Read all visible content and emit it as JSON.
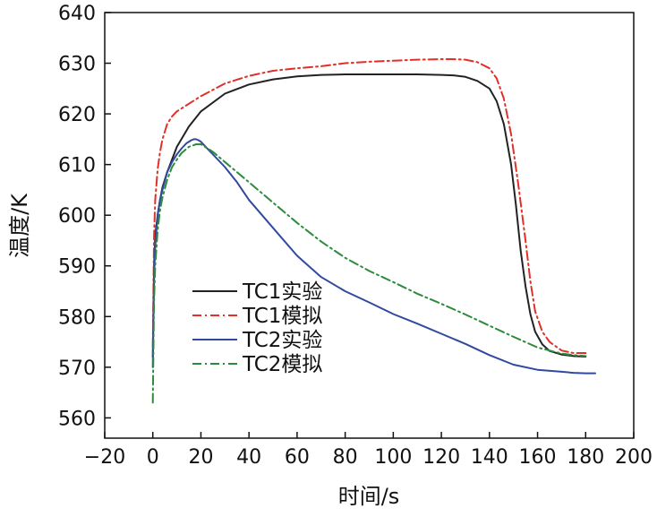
{
  "chart_data": {
    "type": "line",
    "title": "",
    "xlabel": "时间/s",
    "ylabel": "温度/K",
    "xlim": [
      -20,
      200
    ],
    "ylim": [
      556,
      640
    ],
    "xticks": [
      -20,
      0,
      20,
      40,
      60,
      80,
      100,
      120,
      140,
      160,
      180,
      200
    ],
    "xtick_labels": [
      "−20",
      "0",
      "20",
      "40",
      "60",
      "80",
      "100",
      "120",
      "140",
      "160",
      "180",
      "200"
    ],
    "yticks": [
      560,
      570,
      580,
      590,
      600,
      610,
      620,
      630,
      640
    ],
    "ytick_labels": [
      "560",
      "570",
      "580",
      "590",
      "600",
      "610",
      "620",
      "630",
      "640"
    ],
    "grid": false,
    "legend_position": "lower-left",
    "series": [
      {
        "name": "TC1实验",
        "color": "#222222",
        "style": "solid",
        "x": [
          0,
          0.5,
          1,
          2,
          3,
          4,
          6,
          8,
          10,
          15,
          20,
          30,
          40,
          50,
          60,
          70,
          80,
          90,
          100,
          110,
          120,
          125,
          130,
          135,
          140,
          143,
          146,
          149,
          151,
          153,
          155,
          157,
          159,
          162,
          165,
          170,
          175,
          180
        ],
        "y": [
          572,
          590,
          596,
          600,
          603,
          605.5,
          608.5,
          611,
          613.5,
          617.5,
          620.5,
          624,
          625.8,
          626.8,
          627.4,
          627.7,
          627.8,
          627.8,
          627.8,
          627.8,
          627.7,
          627.6,
          627.3,
          626.5,
          625,
          622.5,
          618,
          610,
          602,
          593,
          586,
          580.5,
          577,
          574.5,
          573.2,
          572.5,
          572.2,
          572.1
        ]
      },
      {
        "name": "TC1模拟",
        "color": "#e0302a",
        "style": "dashdot",
        "x": [
          0,
          0.5,
          1,
          2,
          3,
          4,
          6,
          8,
          10,
          15,
          20,
          30,
          40,
          50,
          60,
          70,
          80,
          90,
          100,
          110,
          120,
          125,
          130,
          135,
          140,
          143,
          146,
          149,
          152,
          155,
          157,
          159,
          162,
          165,
          170,
          175,
          180
        ],
        "y": [
          574,
          596,
          603,
          609,
          612.5,
          615,
          618,
          619.5,
          620.5,
          622,
          623.5,
          626,
          627.5,
          628.5,
          629,
          629.4,
          630,
          630.3,
          630.5,
          630.7,
          630.8,
          630.8,
          630.7,
          630.2,
          629,
          627,
          623,
          616,
          606,
          595,
          587,
          581,
          577,
          575,
          573.3,
          572.8,
          572.8
        ]
      },
      {
        "name": "TC2实验",
        "color": "#2f4a9e",
        "style": "solid",
        "x": [
          0,
          0.5,
          1,
          2,
          3,
          4,
          6,
          8,
          10,
          12,
          14,
          16,
          17,
          18,
          19,
          20,
          22,
          25,
          30,
          35,
          40,
          50,
          60,
          70,
          80,
          90,
          100,
          110,
          120,
          130,
          140,
          150,
          160,
          170,
          175,
          180,
          184
        ],
        "y": [
          570,
          588,
          594,
          600,
          603,
          605,
          608.5,
          610.5,
          612,
          613.2,
          614.2,
          614.8,
          615,
          615,
          614.8,
          614.5,
          613.5,
          612,
          609.5,
          606.5,
          603,
          597.5,
          592,
          587.8,
          585,
          582.8,
          580.5,
          578.6,
          576.6,
          574.6,
          572.4,
          570.5,
          569.5,
          569.1,
          568.9,
          568.8,
          568.8
        ]
      },
      {
        "name": "TC2模拟",
        "color": "#2e8b3c",
        "style": "dashdot",
        "x": [
          0,
          0.5,
          1,
          2,
          3,
          4,
          6,
          8,
          10,
          12,
          15,
          18,
          20,
          25,
          30,
          40,
          50,
          60,
          70,
          80,
          90,
          100,
          110,
          120,
          130,
          140,
          150,
          160,
          170,
          175,
          180
        ],
        "y": [
          563,
          583,
          590,
          597,
          601,
          603.5,
          607,
          609.5,
          611,
          612.3,
          613.5,
          614,
          614,
          612.5,
          610.5,
          606.5,
          602.5,
          598.5,
          594.8,
          591.6,
          589,
          586.8,
          584.5,
          582.5,
          580.4,
          578.2,
          576,
          573.9,
          572.7,
          572.4,
          572.2
        ]
      }
    ]
  }
}
